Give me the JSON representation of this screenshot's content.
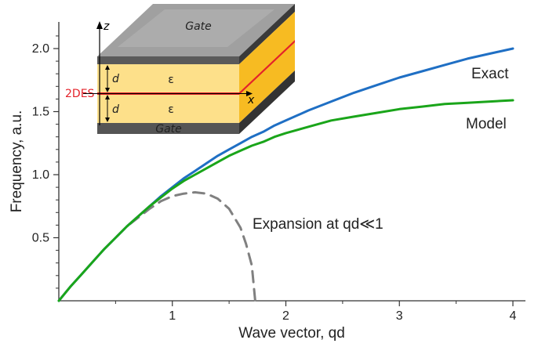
{
  "chart_data": {
    "type": "line",
    "xlabel": "Wave vector, qd",
    "ylabel": "Frequency, a.u.",
    "xlim": [
      0,
      4.15
    ],
    "ylim": [
      0,
      2.2
    ],
    "xticks": [
      "1",
      "2",
      "3",
      "4"
    ],
    "yticks": [
      "0.5",
      "1.0",
      "1.5",
      "2.0"
    ],
    "series": [
      {
        "name": "Exact",
        "color": "#1f6fc4",
        "style": "solid",
        "x": [
          0,
          0.1,
          0.2,
          0.3,
          0.4,
          0.5,
          0.6,
          0.7,
          0.8,
          0.9,
          1.0,
          1.1,
          1.2,
          1.3,
          1.4,
          1.5,
          1.6,
          1.7,
          1.8,
          1.9,
          2.0,
          2.2,
          2.4,
          2.6,
          2.8,
          3.0,
          3.2,
          3.4,
          3.6,
          3.8,
          4.0
        ],
        "y": [
          0,
          0.11,
          0.21,
          0.31,
          0.41,
          0.5,
          0.59,
          0.67,
          0.75,
          0.83,
          0.9,
          0.97,
          1.03,
          1.09,
          1.15,
          1.2,
          1.25,
          1.3,
          1.34,
          1.39,
          1.43,
          1.51,
          1.58,
          1.65,
          1.71,
          1.77,
          1.82,
          1.87,
          1.92,
          1.96,
          2.0
        ]
      },
      {
        "name": "Model",
        "color": "#1aa51a",
        "style": "solid",
        "x": [
          0,
          0.1,
          0.2,
          0.3,
          0.4,
          0.5,
          0.6,
          0.7,
          0.8,
          0.9,
          1.0,
          1.1,
          1.2,
          1.3,
          1.4,
          1.5,
          1.6,
          1.7,
          1.8,
          1.9,
          2.0,
          2.2,
          2.4,
          2.6,
          2.8,
          3.0,
          3.2,
          3.4,
          3.6,
          3.8,
          4.0
        ],
        "y": [
          0,
          0.11,
          0.21,
          0.31,
          0.41,
          0.5,
          0.59,
          0.67,
          0.75,
          0.82,
          0.89,
          0.95,
          1.0,
          1.05,
          1.1,
          1.15,
          1.19,
          1.23,
          1.26,
          1.3,
          1.33,
          1.38,
          1.43,
          1.46,
          1.49,
          1.52,
          1.54,
          1.56,
          1.57,
          1.58,
          1.59
        ]
      },
      {
        "name": "Expansion at qd≪1",
        "color": "#808080",
        "style": "dashed",
        "x": [
          0.4,
          0.5,
          0.6,
          0.7,
          0.8,
          0.9,
          1.0,
          1.1,
          1.2,
          1.3,
          1.4,
          1.5,
          1.6,
          1.65,
          1.7,
          1.73
        ],
        "y": [
          0.41,
          0.5,
          0.59,
          0.66,
          0.73,
          0.79,
          0.83,
          0.85,
          0.86,
          0.85,
          0.81,
          0.73,
          0.58,
          0.45,
          0.28,
          0.0
        ]
      }
    ],
    "annotations": {
      "exact_label": "Exact",
      "model_label": "Model",
      "expansion_label": "Expansion at qd≪1"
    }
  },
  "inset": {
    "top_label": "Gate",
    "bottom_label": "Gate",
    "z_label": "z",
    "x_label": "x",
    "d_upper": "d",
    "d_lower": "d",
    "eps_upper": "ε",
    "eps_lower": "ε",
    "layer_label": "2DES",
    "colors": {
      "gate_top": "#9e9e9e",
      "gate_side": "#3c3c3c",
      "dielectric": "#fde08a",
      "dielectric_side": "#f6b400",
      "layer": "#e4222a"
    }
  }
}
